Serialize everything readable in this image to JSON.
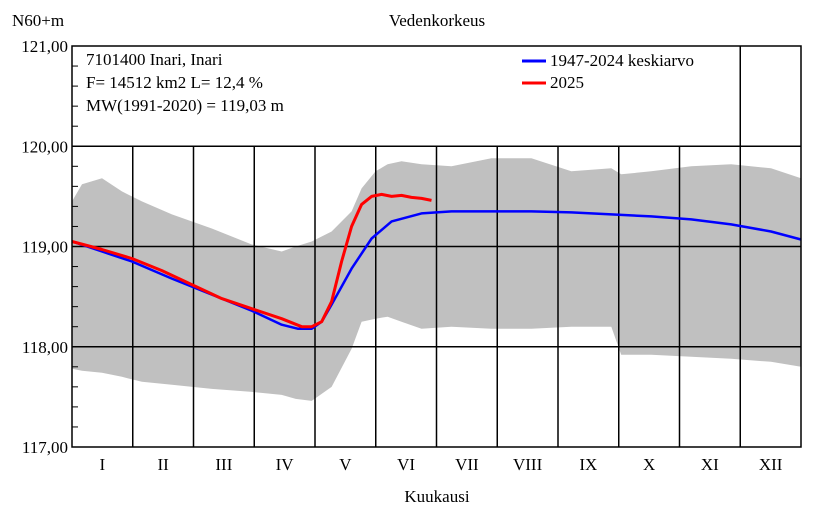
{
  "chart_data": {
    "type": "line",
    "title": "Vedenkorkeus",
    "ylabel": "N60+m",
    "xlabel": "Kuukausi",
    "ylim": [
      117.0,
      121.0
    ],
    "yticks": [
      "117,00",
      "118,00",
      "119,00",
      "120,00",
      "121,00"
    ],
    "ytick_values": [
      117,
      118,
      119,
      120,
      121
    ],
    "x_range_days": [
      0,
      365
    ],
    "categories": [
      "I",
      "II",
      "III",
      "IV",
      "V",
      "VI",
      "VII",
      "VIII",
      "IX",
      "X",
      "XI",
      "XII"
    ],
    "grid": true,
    "legend_position": "top-right",
    "info_lines": [
      "7101400 Inari, Inari",
      "F=  14512 km2 L=  12,4 %",
      "MW(1991-2020) = 119,03 m"
    ],
    "colors": {
      "mean": "#0000ff",
      "current": "#ff0000",
      "band": "#c0c0c0"
    },
    "band": {
      "name": "min-max",
      "x": [
        0,
        5,
        15,
        25,
        35,
        50,
        70,
        90,
        105,
        112,
        120,
        130,
        140,
        145,
        152,
        158,
        165,
        175,
        190,
        210,
        230,
        250,
        270,
        275,
        290,
        310,
        330,
        350,
        365
      ],
      "upper": [
        119.45,
        119.62,
        119.68,
        119.55,
        119.45,
        119.32,
        119.18,
        119.02,
        118.95,
        119.0,
        119.05,
        119.15,
        119.35,
        119.58,
        119.75,
        119.82,
        119.85,
        119.82,
        119.8,
        119.88,
        119.88,
        119.75,
        119.78,
        119.72,
        119.75,
        119.8,
        119.82,
        119.78,
        119.68
      ],
      "lower": [
        117.78,
        117.76,
        117.74,
        117.7,
        117.65,
        117.62,
        117.58,
        117.55,
        117.52,
        117.48,
        117.46,
        117.6,
        117.98,
        118.25,
        118.28,
        118.3,
        118.25,
        118.18,
        118.2,
        118.18,
        118.18,
        118.2,
        118.2,
        117.92,
        117.92,
        117.9,
        117.88,
        117.85,
        117.8
      ]
    },
    "series": [
      {
        "name": "1947-2024 keskiarvo",
        "x": [
          0,
          15,
          30,
          50,
          70,
          90,
          105,
          113,
          120,
          125,
          130,
          140,
          150,
          160,
          175,
          190,
          210,
          230,
          250,
          270,
          290,
          310,
          330,
          350,
          365
        ],
        "values": [
          119.05,
          118.95,
          118.85,
          118.68,
          118.52,
          118.36,
          118.22,
          118.18,
          118.18,
          118.25,
          118.42,
          118.78,
          119.08,
          119.25,
          119.33,
          119.35,
          119.35,
          119.35,
          119.34,
          119.32,
          119.3,
          119.27,
          119.22,
          119.15,
          119.07
        ]
      },
      {
        "name": "2025",
        "x": [
          0,
          15,
          30,
          45,
          60,
          75,
          90,
          105,
          115,
          120,
          125,
          130,
          135,
          140,
          145,
          150,
          155,
          160,
          165,
          170,
          175,
          180
        ],
        "values": [
          119.05,
          118.97,
          118.88,
          118.76,
          118.62,
          118.48,
          118.38,
          118.28,
          118.2,
          118.2,
          118.25,
          118.45,
          118.85,
          119.2,
          119.42,
          119.5,
          119.52,
          119.5,
          119.51,
          119.49,
          119.48,
          119.46
        ]
      }
    ]
  }
}
